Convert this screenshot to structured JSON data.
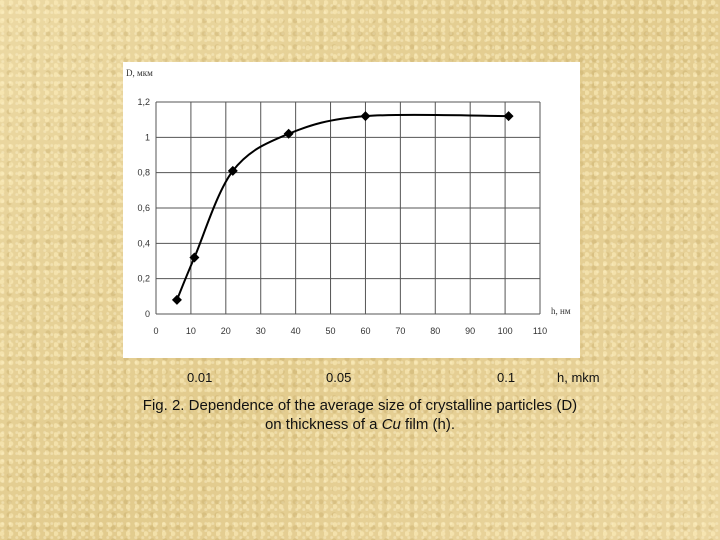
{
  "chart_data": {
    "type": "line",
    "xlabel": "h, нм",
    "ylabel": "D, мкм",
    "xlim": [
      0,
      110
    ],
    "ylim": [
      0,
      1.2
    ],
    "x_ticks": [
      "0",
      "10",
      "20",
      "30",
      "40",
      "50",
      "60",
      "70",
      "80",
      "90",
      "100",
      "110"
    ],
    "y_ticks": [
      "0",
      "0,2",
      "0,4",
      "0,6",
      "0,8",
      "1",
      "1,2"
    ],
    "grid": true,
    "series": [
      {
        "x": [
          6,
          11,
          22,
          38,
          60,
          101
        ],
        "y": [
          0.08,
          0.32,
          0.81,
          1.02,
          1.12,
          1.12
        ]
      }
    ]
  },
  "annotations": {
    "mkm_labels": [
      "0.01",
      "0.05",
      "0.1"
    ],
    "unit_label": "h, mkm"
  },
  "caption": {
    "line1": "Fig. 2. Dependence of the average size of crystalline particles (D)",
    "line2_prefix": "on thickness of a",
    "line2_italic": "Cu",
    "line2_suffix": "film (h)."
  },
  "colors": {
    "background": "#e8d49a",
    "panel": "#ffffff",
    "line": "#000000"
  }
}
